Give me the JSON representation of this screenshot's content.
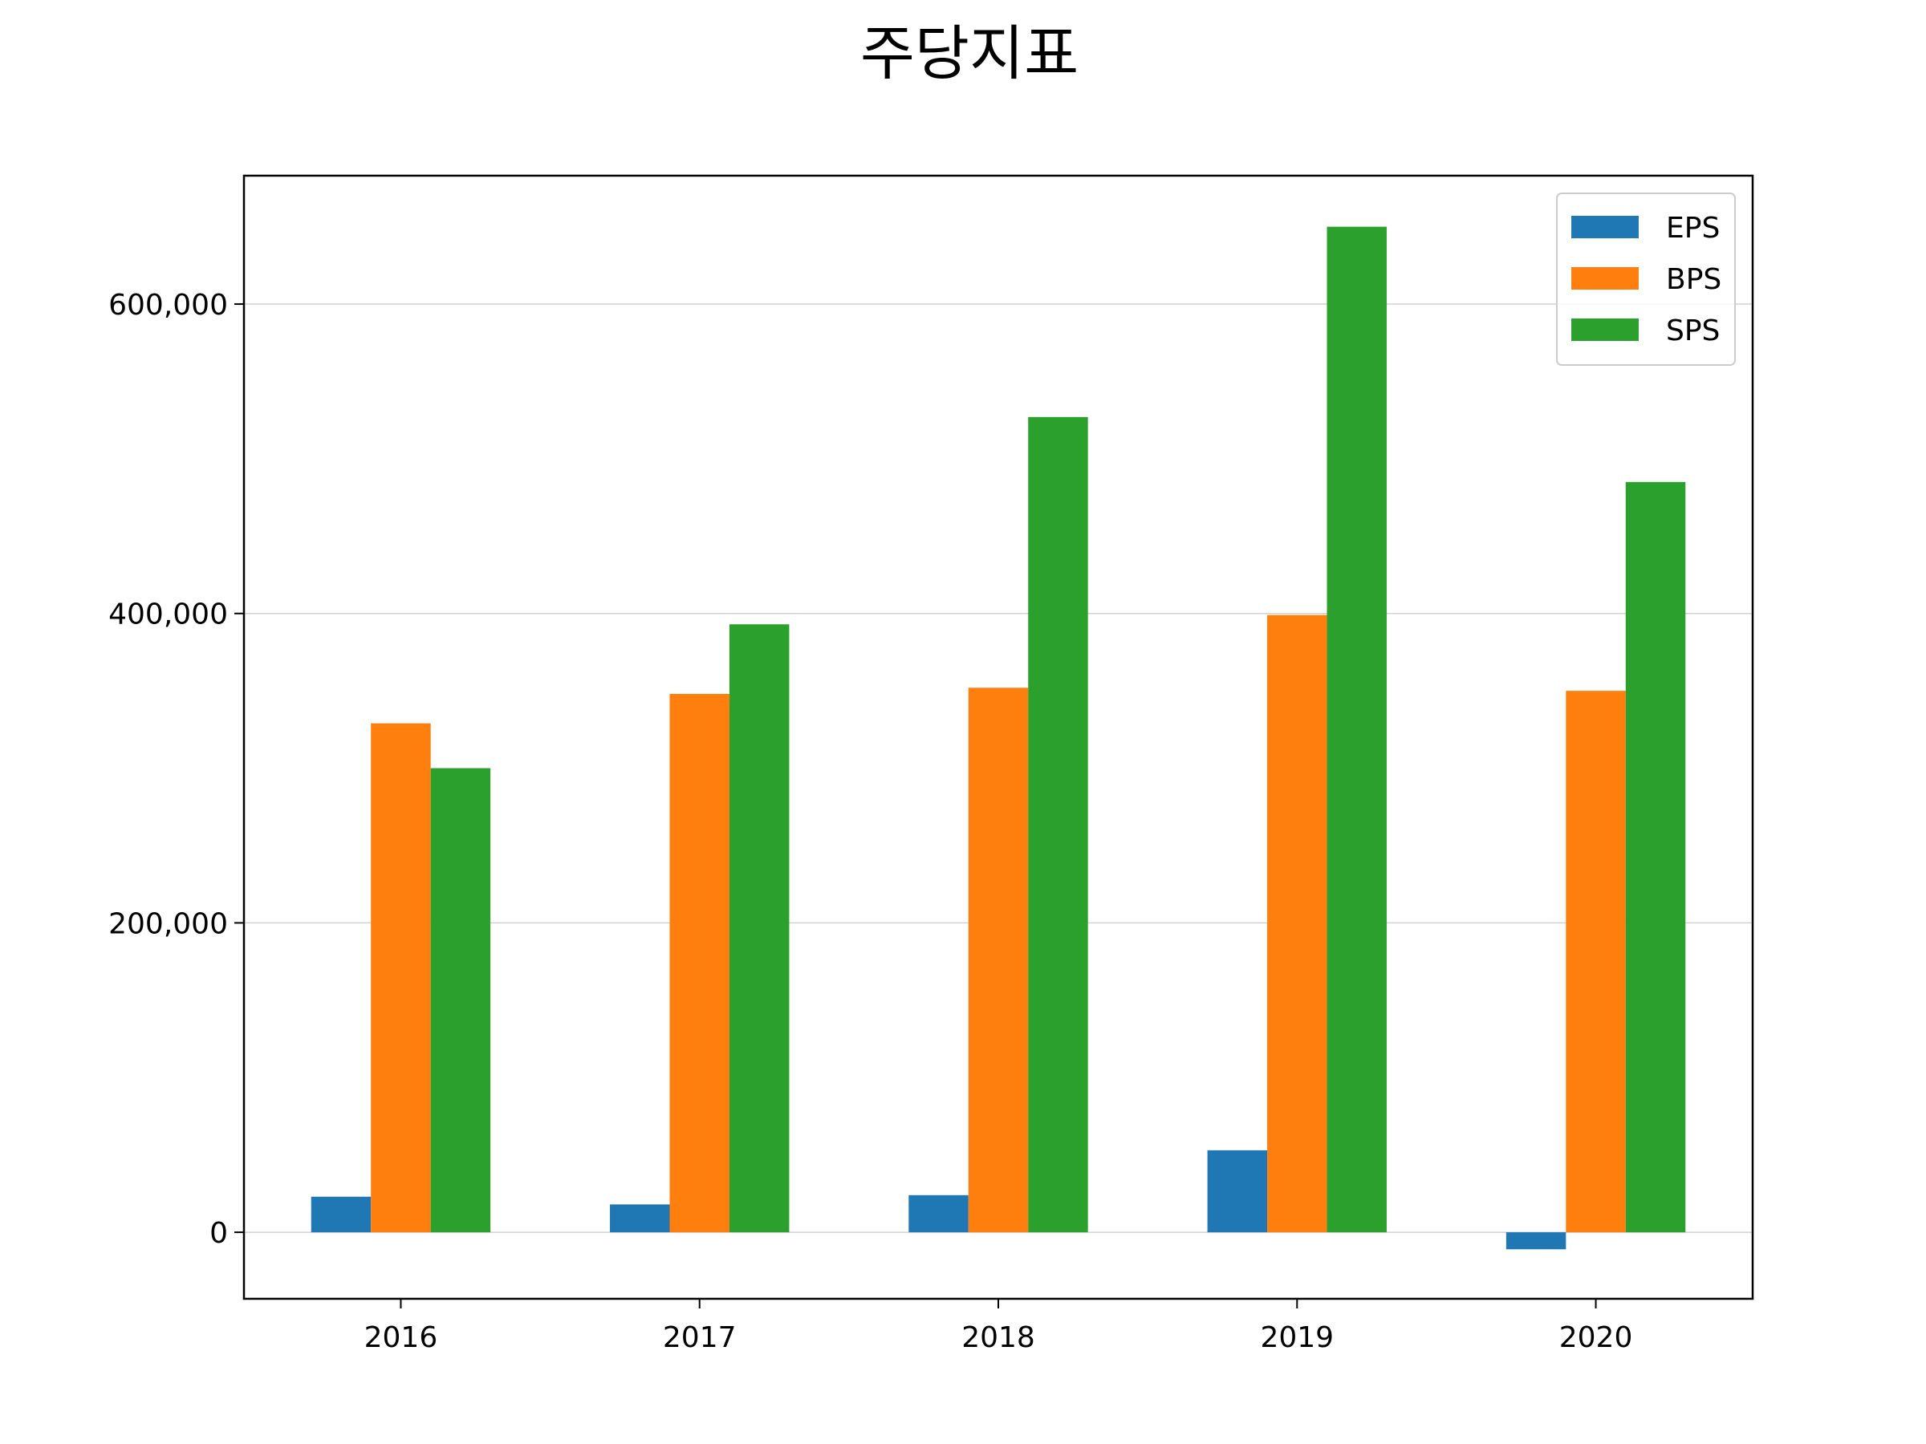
{
  "chart_data": {
    "type": "bar",
    "title": "주당지표",
    "xlabel": "",
    "ylabel": "",
    "categories": [
      "2016",
      "2017",
      "2018",
      "2019",
      "2020"
    ],
    "series": [
      {
        "name": "EPS",
        "color": "#1f77b4",
        "values": [
          23000,
          18000,
          24000,
          53000,
          -11000
        ]
      },
      {
        "name": "BPS",
        "color": "#ff7f0e",
        "values": [
          329000,
          348000,
          352000,
          399000,
          350000
        ]
      },
      {
        "name": "SPS",
        "color": "#2ca02c",
        "values": [
          300000,
          393000,
          527000,
          650000,
          485000
        ]
      }
    ],
    "ylim": [
      -43000,
      683000
    ],
    "yticks": [
      0,
      200000,
      400000,
      600000
    ],
    "ytick_labels": [
      "0",
      "200,000",
      "400,000",
      "600,000"
    ],
    "grid": "horizontal",
    "legend_position": "top-right"
  }
}
